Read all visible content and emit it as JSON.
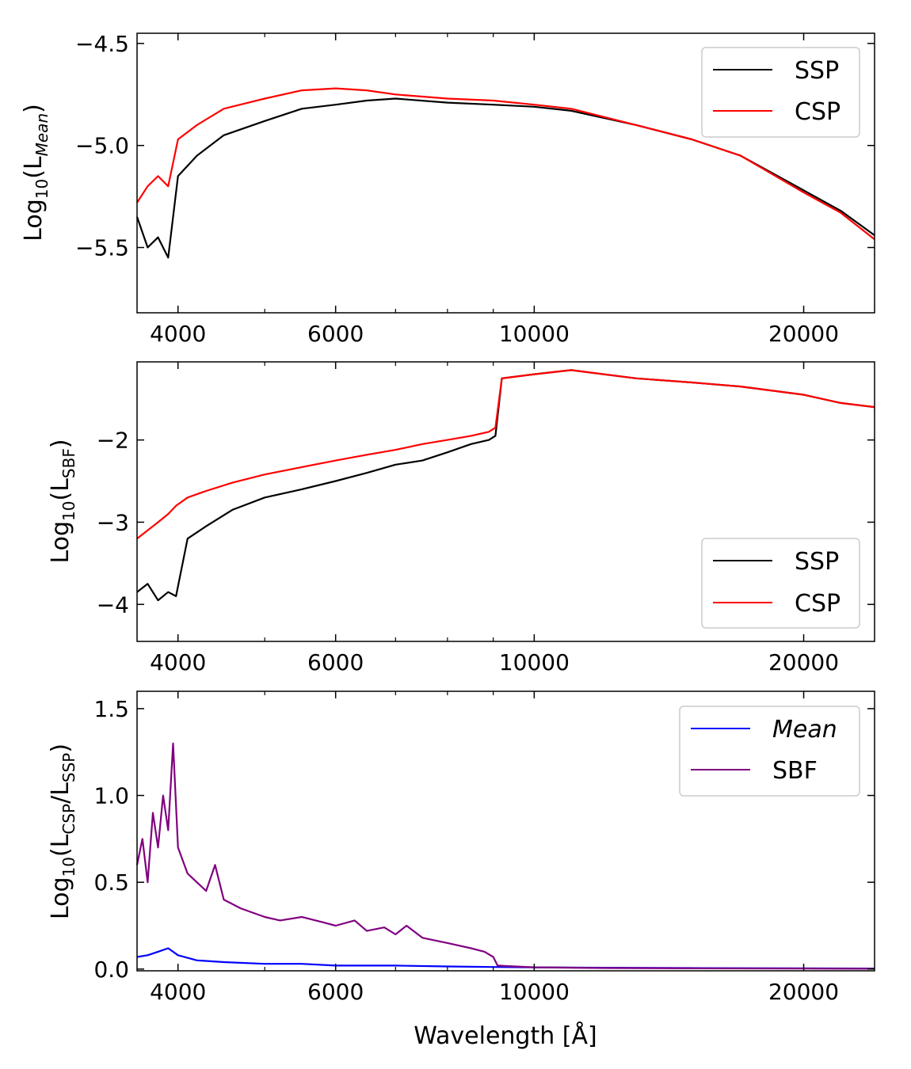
{
  "chart_data": [
    {
      "type": "line",
      "xscale": "log",
      "xlim": [
        3600,
        24000
      ],
      "ylim": [
        -5.82,
        -4.45
      ],
      "xticks": [
        4000,
        6000,
        10000,
        20000
      ],
      "xtick_labels": [
        "4000",
        "6000",
        "10000",
        "20000"
      ],
      "yticks": [
        -4.5,
        -5.0,
        -5.5
      ],
      "ytick_labels": [
        "−4.5",
        "−5.0",
        "−5.5"
      ],
      "ylabel": {
        "main": "Log",
        "sub1": "10",
        "mid": "(L",
        "sub2": "Mean",
        "end": ")"
      },
      "xlabel": "",
      "legend": {
        "placement": "top-right",
        "entries": [
          {
            "name": "SSP",
            "color": "#000000"
          },
          {
            "name": "CSP",
            "color": "#ff0000"
          }
        ]
      },
      "series": [
        {
          "name": "SSP",
          "color": "#000000",
          "x": [
            3600,
            3700,
            3800,
            3900,
            4000,
            4200,
            4500,
            5000,
            5500,
            6000,
            6500,
            7000,
            8000,
            9000,
            10000,
            11000,
            13000,
            15000,
            17000,
            20000,
            22000,
            24000
          ],
          "values": [
            -5.35,
            -5.5,
            -5.45,
            -5.55,
            -5.15,
            -5.05,
            -4.95,
            -4.88,
            -4.82,
            -4.8,
            -4.78,
            -4.77,
            -4.79,
            -4.8,
            -4.81,
            -4.83,
            -4.9,
            -4.97,
            -5.05,
            -5.22,
            -5.32,
            -5.44
          ]
        },
        {
          "name": "CSP",
          "color": "#ff0000",
          "x": [
            3600,
            3700,
            3800,
            3900,
            4000,
            4200,
            4500,
            5000,
            5500,
            6000,
            6500,
            7000,
            8000,
            9000,
            10000,
            11000,
            13000,
            15000,
            17000,
            20000,
            22000,
            24000
          ],
          "values": [
            -5.28,
            -5.2,
            -5.15,
            -5.2,
            -4.97,
            -4.9,
            -4.82,
            -4.77,
            -4.73,
            -4.72,
            -4.73,
            -4.75,
            -4.77,
            -4.78,
            -4.8,
            -4.82,
            -4.9,
            -4.97,
            -5.05,
            -5.23,
            -5.33,
            -5.46
          ]
        }
      ]
    },
    {
      "type": "line",
      "xscale": "log",
      "xlim": [
        3600,
        24000
      ],
      "ylim": [
        -4.45,
        -1.05
      ],
      "xticks": [
        4000,
        6000,
        10000,
        20000
      ],
      "xtick_labels": [
        "4000",
        "6000",
        "10000",
        "20000"
      ],
      "yticks": [
        -2,
        -3,
        -4
      ],
      "ytick_labels": [
        "−2",
        "−3",
        "−4"
      ],
      "ylabel": {
        "main": "Log",
        "sub1": "10",
        "mid": "(L",
        "sub2": "SBF",
        "end": ")"
      },
      "xlabel": "",
      "legend": {
        "placement": "bottom-right",
        "entries": [
          {
            "name": "SSP",
            "color": "#000000"
          },
          {
            "name": "CSP",
            "color": "#ff0000"
          }
        ]
      },
      "series": [
        {
          "name": "SSP",
          "color": "#000000",
          "x": [
            3600,
            3700,
            3800,
            3900,
            3980,
            4100,
            4300,
            4600,
            5000,
            5500,
            6000,
            6500,
            7000,
            7500,
            8000,
            8500,
            8900,
            9050,
            9200,
            10000,
            11000,
            13000,
            15000,
            17000,
            20000,
            22000,
            24000
          ],
          "values": [
            -3.85,
            -3.75,
            -3.95,
            -3.85,
            -3.9,
            -3.2,
            -3.05,
            -2.85,
            -2.7,
            -2.6,
            -2.5,
            -2.4,
            -2.3,
            -2.25,
            -2.15,
            -2.05,
            -2.0,
            -1.95,
            -1.25,
            -1.2,
            -1.15,
            -1.25,
            -1.3,
            -1.35,
            -1.45,
            -1.55,
            -1.6
          ]
        },
        {
          "name": "CSP",
          "color": "#ff0000",
          "x": [
            3600,
            3700,
            3800,
            3900,
            3980,
            4100,
            4300,
            4600,
            5000,
            5500,
            6000,
            6500,
            7000,
            7500,
            8000,
            8500,
            8900,
            9050,
            9200,
            10000,
            11000,
            13000,
            15000,
            17000,
            20000,
            22000,
            24000
          ],
          "values": [
            -3.2,
            -3.1,
            -3.0,
            -2.9,
            -2.8,
            -2.7,
            -2.62,
            -2.52,
            -2.42,
            -2.33,
            -2.25,
            -2.18,
            -2.12,
            -2.05,
            -2.0,
            -1.95,
            -1.9,
            -1.85,
            -1.25,
            -1.2,
            -1.15,
            -1.25,
            -1.3,
            -1.35,
            -1.45,
            -1.55,
            -1.6
          ]
        }
      ]
    },
    {
      "type": "line",
      "xscale": "log",
      "xlim": [
        3600,
        24000
      ],
      "ylim": [
        -0.01,
        1.6
      ],
      "xticks": [
        4000,
        6000,
        10000,
        20000
      ],
      "xtick_labels": [
        "4000",
        "6000",
        "10000",
        "20000"
      ],
      "yticks": [
        0.0,
        0.5,
        1.0,
        1.5
      ],
      "ytick_labels": [
        "0.0",
        "0.5",
        "1.0",
        "1.5"
      ],
      "ylabel": {
        "main": "Log",
        "sub1": "10",
        "mid": "(L",
        "sub2": "CSP",
        "mid2": "/L",
        "sub3": "SSP",
        "end": ")"
      },
      "xlabel": "Wavelength [Å]",
      "legend": {
        "placement": "top-right",
        "entries": [
          {
            "name": "Mean",
            "color": "#0000ff",
            "italic": true
          },
          {
            "name": "SBF",
            "color": "#800080"
          }
        ]
      },
      "series": [
        {
          "name": "Mean",
          "color": "#0000ff",
          "x": [
            3600,
            3700,
            3800,
            3900,
            4000,
            4200,
            4500,
            5000,
            5500,
            6000,
            7000,
            8000,
            9000,
            10000,
            12000,
            15000,
            20000,
            24000
          ],
          "values": [
            0.07,
            0.08,
            0.1,
            0.12,
            0.08,
            0.05,
            0.04,
            0.03,
            0.03,
            0.02,
            0.02,
            0.015,
            0.012,
            0.01,
            0.008,
            0.006,
            0.004,
            0.003
          ]
        },
        {
          "name": "SBF",
          "color": "#800080",
          "x": [
            3600,
            3650,
            3700,
            3750,
            3800,
            3850,
            3900,
            3950,
            4000,
            4100,
            4200,
            4300,
            4400,
            4500,
            4700,
            5000,
            5200,
            5500,
            5800,
            6000,
            6300,
            6500,
            6800,
            7000,
            7200,
            7500,
            8000,
            8500,
            8800,
            9000,
            9100,
            10000,
            12000,
            15000,
            20000,
            24000
          ],
          "values": [
            0.6,
            0.75,
            0.5,
            0.9,
            0.7,
            1.0,
            0.8,
            1.3,
            0.7,
            0.55,
            0.5,
            0.45,
            0.6,
            0.4,
            0.35,
            0.3,
            0.28,
            0.3,
            0.27,
            0.25,
            0.28,
            0.22,
            0.24,
            0.2,
            0.25,
            0.18,
            0.15,
            0.12,
            0.1,
            0.07,
            0.02,
            0.01,
            0.006,
            0.004,
            0.003,
            0.002
          ]
        }
      ]
    }
  ]
}
